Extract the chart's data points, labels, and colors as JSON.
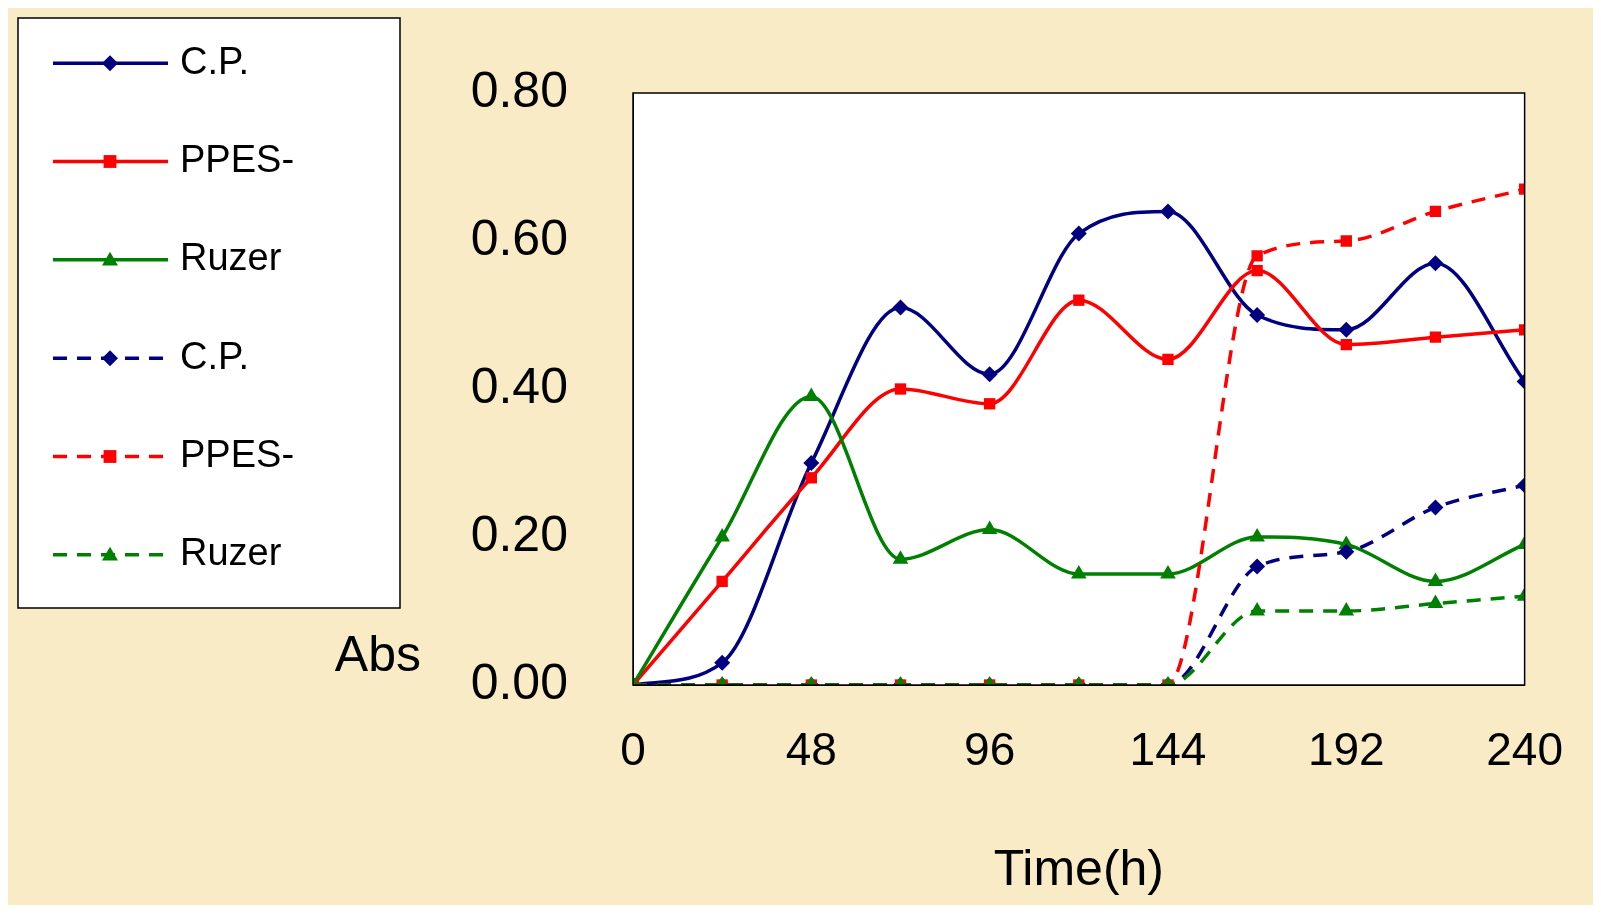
{
  "chart_data": {
    "type": "line",
    "xlabel": "Time(h)",
    "ylabel": "Abs",
    "x": [
      0,
      24,
      48,
      72,
      96,
      120,
      144,
      168,
      192,
      216,
      240
    ],
    "xlim": [
      0,
      240
    ],
    "xticks": [
      0,
      48,
      96,
      144,
      192,
      240
    ],
    "ylim": [
      0,
      0.8
    ],
    "yticks": [
      {
        "value": 0,
        "label": "0.00"
      },
      {
        "value": 0.2,
        "label": "0.20"
      },
      {
        "value": 0.4,
        "label": "0.40"
      },
      {
        "value": 0.6,
        "label": "0.60"
      },
      {
        "value": 0.8,
        "label": "0.80"
      }
    ],
    "grid": false,
    "legend": "left",
    "series": [
      {
        "name": "C.P.",
        "color": "#000080",
        "marker": "diamond",
        "line_style": "solid",
        "values": [
          0,
          0.03,
          0.3,
          0.51,
          0.42,
          0.61,
          0.64,
          0.5,
          0.48,
          0.57,
          0.41
        ]
      },
      {
        "name": "PPES-",
        "color": "#ff0000",
        "marker": "square",
        "line_style": "solid",
        "values": [
          0,
          0.14,
          0.28,
          0.4,
          0.38,
          0.52,
          0.44,
          0.56,
          0.46,
          0.47,
          0.48
        ]
      },
      {
        "name": "Ruzer",
        "color": "#008000",
        "marker": "triangle",
        "line_style": "solid",
        "values": [
          0,
          0.2,
          0.39,
          0.17,
          0.21,
          0.15,
          0.15,
          0.2,
          0.19,
          0.14,
          0.19
        ]
      },
      {
        "name": "C.P.",
        "color": "#000080",
        "marker": "diamond",
        "line_style": "dashed",
        "values": [
          0,
          0,
          0,
          0,
          0,
          0,
          0,
          0.16,
          0.18,
          0.24,
          0.27
        ]
      },
      {
        "name": "PPES-",
        "color": "#ff0000",
        "marker": "square",
        "line_style": "dashed",
        "values": [
          0,
          0,
          0,
          0,
          0,
          0,
          0,
          0.58,
          0.6,
          0.64,
          0.67
        ]
      },
      {
        "name": "Ruzer",
        "color": "#008000",
        "marker": "triangle",
        "line_style": "dashed",
        "values": [
          0,
          0,
          0,
          0,
          0,
          0,
          0,
          0.1,
          0.1,
          0.11,
          0.12
        ]
      }
    ]
  }
}
